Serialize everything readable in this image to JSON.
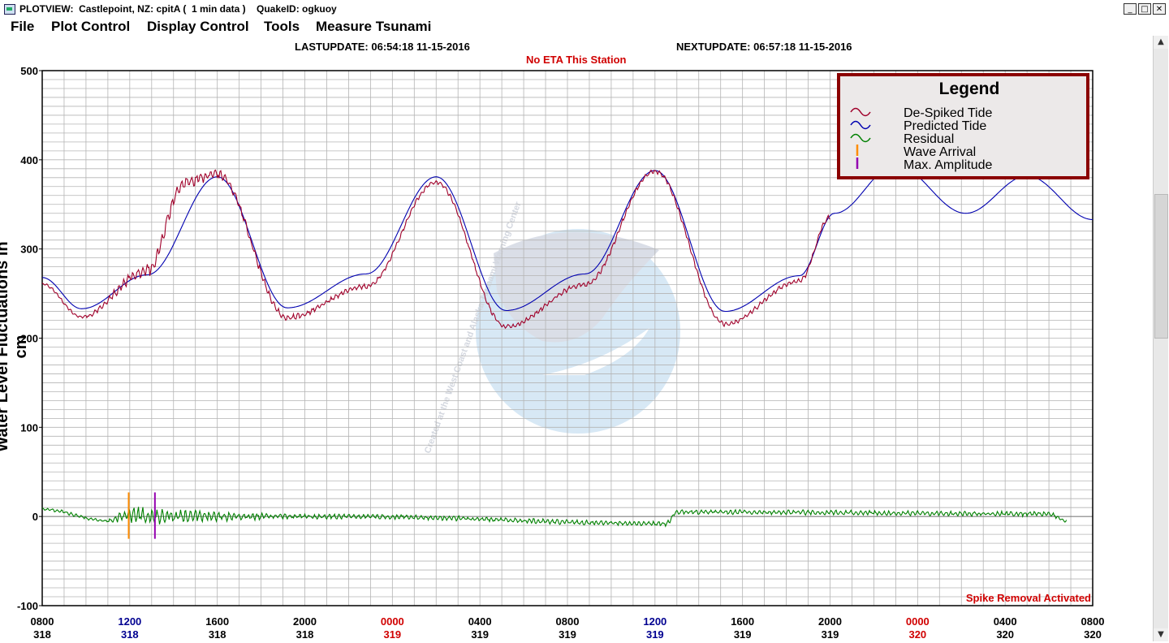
{
  "window": {
    "title": "PLOTVIEW:  Castlepoint, NZ: cpitA (  1 min data )    QuakeID: ogkuoy",
    "minimize": "_",
    "maximize": "□",
    "close": "✕"
  },
  "menu": [
    "File",
    "Plot Control",
    "Display Control",
    "Tools",
    "Measure Tsunami"
  ],
  "header": {
    "last_update": "LASTUPDATE: 06:54:18 11-15-2016",
    "next_update": "NEXTUPDATE: 06:57:18 11-15-2016",
    "eta": "No ETA This Station"
  },
  "footer_note": "Spike Removal Activated",
  "watermark": "Created at the West Coast and Alaska Tsunami Warning Center",
  "colors": {
    "despiked": "#a0002a",
    "predicted": "#0000b0",
    "residual": "#008000",
    "wave_arrival": "#ff8c00",
    "max_amplitude": "#9400b0",
    "header_red": "#d00000",
    "tick_blue": "#000090"
  },
  "scrollbar": {
    "up_icon": "▲",
    "down_icon": "▼"
  },
  "chart_data": {
    "type": "line",
    "ylabel": "Water Level Fluctuations in cm",
    "ylim": [
      -100,
      500
    ],
    "yticks": [
      500,
      400,
      300,
      200,
      100,
      0,
      -100
    ],
    "grid": true,
    "legend_position": "top-right",
    "legend": {
      "title": "Legend",
      "items": [
        {
          "label": "De-Spiked Tide",
          "symbol": "wave",
          "color": "#a0002a"
        },
        {
          "label": "Predicted Tide",
          "symbol": "wave",
          "color": "#0000b0"
        },
        {
          "label": "Residual",
          "symbol": "wave",
          "color": "#008000"
        },
        {
          "label": "Wave Arrival",
          "symbol": "bar",
          "color": "#ff8c00"
        },
        {
          "label": "Max. Amplitude",
          "symbol": "bar",
          "color": "#9400b0"
        }
      ]
    },
    "xaxis": {
      "range_hours": [
        0,
        48
      ],
      "tick_every_hours": 4,
      "ticks": [
        {
          "time": "0800",
          "day": "318",
          "color": "#000000"
        },
        {
          "time": "1200",
          "day": "318",
          "color": "#000090"
        },
        {
          "time": "1600",
          "day": "318",
          "color": "#000000"
        },
        {
          "time": "2000",
          "day": "318",
          "color": "#000000"
        },
        {
          "time": "0000",
          "day": "319",
          "color": "#d00000"
        },
        {
          "time": "0400",
          "day": "319",
          "color": "#000000"
        },
        {
          "time": "0800",
          "day": "319",
          "color": "#000000"
        },
        {
          "time": "1200",
          "day": "319",
          "color": "#000090"
        },
        {
          "time": "1600",
          "day": "319",
          "color": "#000000"
        },
        {
          "time": "2000",
          "day": "319",
          "color": "#000000"
        },
        {
          "time": "0000",
          "day": "320",
          "color": "#d00000"
        },
        {
          "time": "0400",
          "day": "320",
          "color": "#000000"
        },
        {
          "time": "0800",
          "day": "320",
          "color": "#000000"
        }
      ]
    },
    "series": [
      {
        "name": "Predicted Tide",
        "color": "#0000b0",
        "x_hours": [
          0,
          1.8,
          4.8,
          8.0,
          11.2,
          14.8,
          18.0,
          21.2,
          24.8,
          28.0,
          31.2,
          34.6,
          36.2,
          39.0,
          42.2,
          45.0,
          48.0
        ],
        "values": [
          268,
          233,
          271,
          381,
          234,
          272,
          381,
          231,
          272,
          388,
          230,
          270,
          340,
          394,
          340,
          382,
          333
        ]
      },
      {
        "name": "De-Spiked Tide",
        "color": "#a0002a",
        "x_hours": [
          0,
          1.8,
          4.8,
          6.5,
          8.0,
          11.2,
          14.8,
          18.0,
          21.2,
          24.8,
          28.0,
          31.2,
          34.6,
          36.0
        ],
        "values": [
          261,
          224,
          276,
          375,
          384,
          223,
          258,
          375,
          213,
          260,
          387,
          216,
          264,
          336
        ],
        "noise": [
          2,
          2,
          8,
          10,
          6,
          4,
          3,
          3,
          3,
          3,
          3,
          3,
          3,
          3
        ]
      },
      {
        "name": "Residual",
        "color": "#008000",
        "x_hours": [
          0,
          3.0,
          3.9,
          5.0,
          6.5,
          10.8,
          14.0,
          28.5,
          29.0,
          46.0,
          46.8
        ],
        "values": [
          8,
          -5,
          2,
          0,
          0,
          0,
          0,
          -8,
          5,
          3,
          -5
        ],
        "noise": [
          2,
          2,
          10,
          12,
          8,
          3,
          3,
          3,
          3,
          3,
          2
        ]
      }
    ],
    "markers": [
      {
        "name": "Wave Arrival",
        "x_hours": 3.95,
        "y_min": -25,
        "y_max": 27,
        "color": "#ff8c00"
      },
      {
        "name": "Max. Amplitude",
        "x_hours": 5.15,
        "y_min": -25,
        "y_max": 27,
        "color": "#9400b0"
      }
    ]
  }
}
